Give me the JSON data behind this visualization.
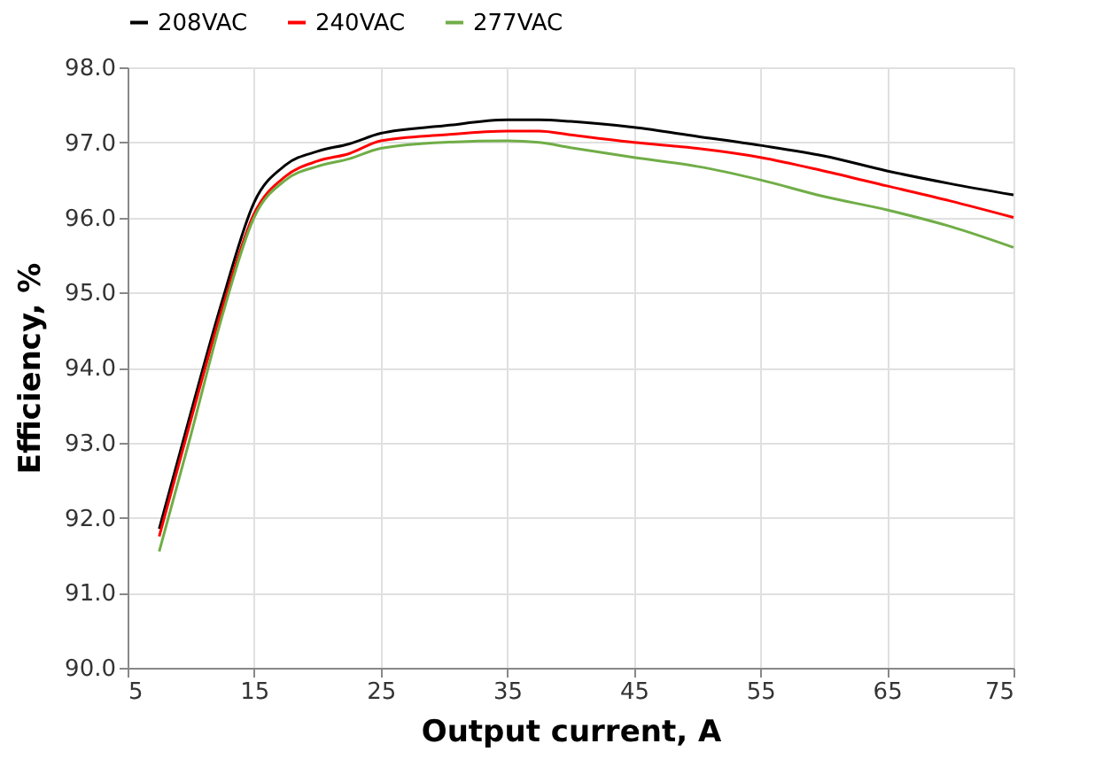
{
  "chart_data": {
    "type": "line",
    "xlabel": "Output current, A",
    "ylabel": "Efficiency, %",
    "x": [
      7.5,
      10,
      12.5,
      15,
      17.5,
      20,
      22.5,
      25,
      30,
      35,
      37.5,
      40,
      45,
      50,
      55,
      60,
      65,
      70,
      75
    ],
    "series": [
      {
        "name": "208VAC",
        "color": "#000000",
        "values": [
          91.85,
          93.4,
          94.9,
          96.2,
          96.7,
          96.88,
          96.98,
          97.12,
          97.22,
          97.3,
          97.3,
          97.28,
          97.2,
          97.08,
          96.96,
          96.82,
          96.62,
          96.45,
          96.3
        ]
      },
      {
        "name": "240VAC",
        "color": "#ff0000",
        "values": [
          91.75,
          93.3,
          94.8,
          96.05,
          96.55,
          96.75,
          96.85,
          97.02,
          97.1,
          97.15,
          97.15,
          97.1,
          97.0,
          96.92,
          96.8,
          96.62,
          96.42,
          96.22,
          96.0
        ]
      },
      {
        "name": "277VAC",
        "color": "#70ad47",
        "values": [
          91.55,
          93.1,
          94.7,
          96.0,
          96.5,
          96.68,
          96.78,
          96.92,
          97.0,
          97.02,
          97.0,
          96.93,
          96.8,
          96.68,
          96.5,
          96.28,
          96.1,
          95.88,
          95.6
        ]
      }
    ],
    "xlim": [
      5,
      75
    ],
    "xticks": [
      5,
      15,
      25,
      35,
      45,
      55,
      65,
      75
    ],
    "ylim": [
      90,
      98
    ],
    "yticks": [
      {
        "value": 90,
        "label": "90.0"
      },
      {
        "value": 91,
        "label": "91.0"
      },
      {
        "value": 92,
        "label": "92.0"
      },
      {
        "value": 93,
        "label": "93.0"
      },
      {
        "value": 94,
        "label": "94.0"
      },
      {
        "value": 95,
        "label": "95.0"
      },
      {
        "value": 96,
        "label": "96.0"
      },
      {
        "value": 97,
        "label": "97.0"
      },
      {
        "value": 98,
        "label": "98.0"
      }
    ],
    "grid": true,
    "legend": "top",
    "marker": "none",
    "line_style": "solid"
  }
}
